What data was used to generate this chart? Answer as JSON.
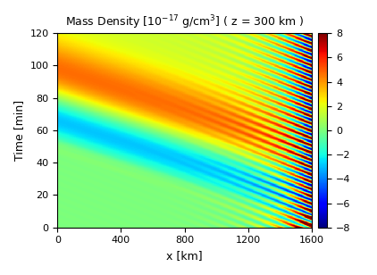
{
  "title": "Mass Density [$10^{-17}$ g/cm$^3$] ( z = 300 km )",
  "xlabel": "x [km]",
  "ylabel": "Time [min]",
  "xlim_data": [
    0,
    1600
  ],
  "ylim": [
    0,
    120
  ],
  "xticks": [
    0,
    400,
    800,
    1200,
    1600
  ],
  "xticklabels": [
    "1600",
    "1200",
    "800",
    "400",
    "0"
  ],
  "yticks": [
    0,
    20,
    40,
    60,
    80,
    100,
    120
  ],
  "clim": [
    -8,
    8
  ],
  "cticks": [
    -8,
    -6,
    -4,
    -2,
    0,
    2,
    4,
    6,
    8
  ],
  "colormap": "jet",
  "nx": 600,
  "ny": 400,
  "x_km_max": 1600,
  "t_max": 120
}
